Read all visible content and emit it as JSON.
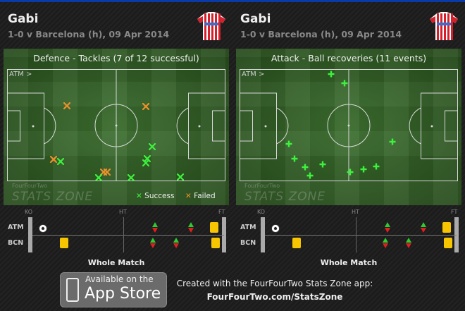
{
  "panels": [
    {
      "player": "Gabi",
      "match": "1-0 v Barcelona (h), 09 Apr 2014",
      "title": "Defence - Tackles (7 of 12 successful)",
      "direction": "ATM >",
      "brand_small": "FourFourTwo",
      "brand_large": "STATS ZONE",
      "legend": [
        {
          "symbol": "✕",
          "label": "Success",
          "color": "#3df23d"
        },
        {
          "symbol": "✕",
          "label": "Failed",
          "color": "#f0902a"
        }
      ],
      "events": [
        {
          "type": "failed",
          "x": 27.4,
          "y": 32.7
        },
        {
          "type": "failed",
          "x": 63.5,
          "y": 33.3
        },
        {
          "type": "failed",
          "x": 21.3,
          "y": 80.5
        },
        {
          "type": "failed",
          "x": 44.2,
          "y": 91.8
        },
        {
          "type": "failed",
          "x": 45.8,
          "y": 91.8
        },
        {
          "type": "success",
          "x": 24.5,
          "y": 82.4
        },
        {
          "type": "success",
          "x": 41.9,
          "y": 96.9
        },
        {
          "type": "success",
          "x": 56.8,
          "y": 96.9
        },
        {
          "type": "success",
          "x": 79.4,
          "y": 96.2
        },
        {
          "type": "success",
          "x": 66.5,
          "y": 69.2
        },
        {
          "type": "success",
          "x": 64.2,
          "y": 79.9
        },
        {
          "type": "success",
          "x": 63.5,
          "y": 83.6
        }
      ]
    },
    {
      "player": "Gabi",
      "match": "1-0 v Barcelona (h), 09 Apr 2014",
      "title": "Attack - Ball recoveries (11 events)",
      "direction": "ATM >",
      "brand_small": "FourFourTwo",
      "brand_large": "STATS ZONE",
      "legend": [],
      "events": [
        {
          "type": "recovery",
          "x": 41.9,
          "y": 4.4
        },
        {
          "type": "recovery",
          "x": 48.0,
          "y": 12.4
        },
        {
          "type": "recovery",
          "x": 22.5,
          "y": 66.8
        },
        {
          "type": "recovery",
          "x": 25.1,
          "y": 79.8
        },
        {
          "type": "recovery",
          "x": 30.0,
          "y": 87.4
        },
        {
          "type": "recovery",
          "x": 32.2,
          "y": 95.2
        },
        {
          "type": "recovery",
          "x": 38.0,
          "y": 84.7
        },
        {
          "type": "recovery",
          "x": 50.5,
          "y": 91.6
        },
        {
          "type": "recovery",
          "x": 56.7,
          "y": 89.1
        },
        {
          "type": "recovery",
          "x": 62.5,
          "y": 86.6
        },
        {
          "type": "recovery",
          "x": 69.9,
          "y": 64.5
        }
      ]
    }
  ],
  "timeline": {
    "ko": "KO",
    "ht": "HT",
    "ft": "FT",
    "label": "Whole Match",
    "teams": [
      "ATM",
      "BCN"
    ],
    "events": [
      {
        "team": "ATM",
        "type": "goal",
        "minute": 3
      },
      {
        "team": "ATM",
        "type": "substitution",
        "minute": 58
      },
      {
        "team": "ATM",
        "type": "substitution",
        "minute": 75
      },
      {
        "team": "ATM",
        "type": "yellow-card",
        "minute": 86
      },
      {
        "team": "BCN",
        "type": "yellow-card",
        "minute": 15
      },
      {
        "team": "BCN",
        "type": "substitution",
        "minute": 57
      },
      {
        "team": "BCN",
        "type": "substitution",
        "minute": 68
      },
      {
        "team": "BCN",
        "type": "yellow-card",
        "minute": 87
      }
    ]
  },
  "footer": {
    "badge_line1": "Available on the",
    "badge_line2": "App Store",
    "credit": "Created with the FourFourTwo Stats Zone app:",
    "url": "FourFourTwo.com/StatsZone"
  },
  "colors": {
    "success": "#3df23d",
    "failed": "#f0902a",
    "recovery": "#3df23d",
    "yellow": "#f7c600",
    "topbar": "#0a3aa8"
  }
}
